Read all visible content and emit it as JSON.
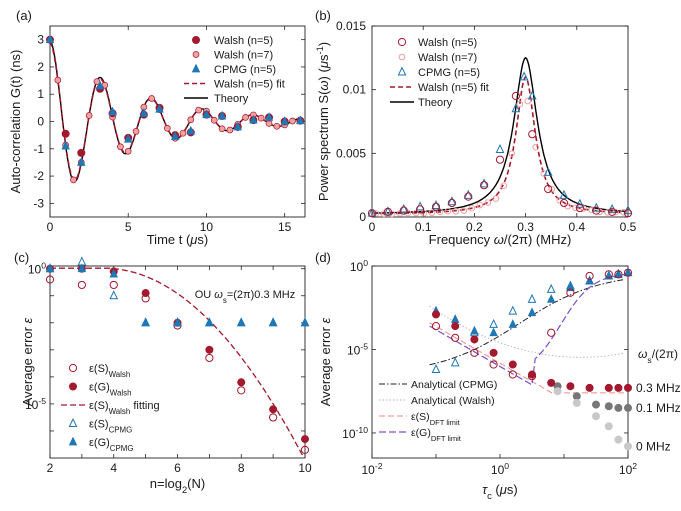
{
  "colors": {
    "walsh": "#a3192e",
    "walsh_light": "#f2a0a0",
    "cpmg": "#1f77b4",
    "theory": "#000000",
    "ac_cpmg": "#222222",
    "ac_walsh": "#bbbbbb",
    "dft_s": "#f28a8a",
    "dft_g": "#7a4fcf",
    "grey_mid": "#777777",
    "grey_light": "#c8c8c8"
  },
  "chart_data": [
    {
      "panel": "(a)",
      "type": "line",
      "xlabel": "Time t (μs)",
      "ylabel": "Auto-correlation G(t) (ns)",
      "xlim": [
        0,
        16.3
      ],
      "ylim": [
        -3.5,
        3.5
      ],
      "xticks": [
        "0",
        "5",
        "10",
        "15"
      ],
      "yticks": [
        "-3",
        "-2",
        "-1",
        "0",
        "1",
        "2",
        "3"
      ],
      "legend": [
        "Walsh (n=5)",
        "Walsh (n=7)",
        "CPMG (n=5)",
        "Walsh (n=5) fit",
        "Theory"
      ],
      "series_walsh5": {
        "x": [
          0,
          1,
          2,
          3.2,
          4,
          5,
          6,
          7,
          8,
          9,
          10,
          11,
          12,
          13,
          14,
          15,
          16
        ],
        "y": [
          3.0,
          -0.45,
          -1.15,
          1.2,
          0.3,
          -0.6,
          0.25,
          0.5,
          -0.5,
          -0.4,
          0.25,
          0.2,
          -0.2,
          0.05,
          0.15,
          0.0,
          0.03
        ]
      },
      "series_cpmg": {
        "x": [
          0,
          1,
          2,
          3.2,
          4,
          5,
          6,
          7,
          8,
          9,
          10,
          11,
          12,
          13,
          14,
          15,
          16
        ],
        "y": [
          3.0,
          -0.9,
          -1.5,
          1.3,
          0.35,
          -0.65,
          0.3,
          0.45,
          -0.55,
          -0.35,
          0.25,
          0.2,
          -0.2,
          0.05,
          0.15,
          0.0,
          0.03
        ]
      }
    },
    {
      "panel": "(b)",
      "type": "line",
      "xlabel": "Frequency ω/(2π) (MHz)",
      "ylabel": "Power spectrum S(ω) (μs⁻¹)",
      "xlim": [
        0,
        0.5
      ],
      "ylim": [
        0,
        0.015
      ],
      "xticks": [
        "0",
        "0.1",
        "0.2",
        "0.3",
        "0.4",
        "0.5"
      ],
      "yticks": [
        "0",
        "0.005",
        "0.01",
        "0.015"
      ],
      "legend": [
        "Walsh (n=5)",
        "Walsh (n=7)",
        "CPMG (n=5)",
        "Walsh (n=5) fit",
        "Theory"
      ],
      "series_walsh5": {
        "x": [
          0.0,
          0.031,
          0.062,
          0.094,
          0.125,
          0.156,
          0.188,
          0.219,
          0.25,
          0.281,
          0.313,
          0.344,
          0.375,
          0.406,
          0.438,
          0.469,
          0.5
        ],
        "y": [
          0.0003,
          0.0004,
          0.0005,
          0.0006,
          0.0008,
          0.0011,
          0.0016,
          0.0025,
          0.0045,
          0.0095,
          0.0065,
          0.0022,
          0.0011,
          0.0007,
          0.0005,
          0.0004,
          0.0003
        ]
      },
      "series_cpmg": {
        "x": [
          0.0,
          0.031,
          0.062,
          0.094,
          0.125,
          0.156,
          0.188,
          0.219,
          0.25,
          0.281,
          0.297,
          0.313,
          0.344,
          0.375,
          0.406,
          0.438,
          0.469,
          0.5
        ],
        "y": [
          0.0003,
          0.0004,
          0.0006,
          0.0008,
          0.0009,
          0.0012,
          0.0017,
          0.0026,
          0.0053,
          0.0085,
          0.011,
          0.0095,
          0.0035,
          0.0017,
          0.001,
          0.0007,
          0.0006,
          0.0005
        ]
      }
    },
    {
      "panel": "(c)",
      "type": "scatter",
      "xlabel": "n=log2(N)",
      "ylabel": "Average error ε",
      "xlim": [
        2,
        10
      ],
      "ylim_log10": [
        -7,
        0.1
      ],
      "xticks": [
        "2",
        "4",
        "6",
        "8",
        "10"
      ],
      "yticks": [
        "10^0",
        "10^-5"
      ],
      "annotation": "OU ωs=(2π)0.3 MHz",
      "legend": [
        "ε(S)Walsh",
        "ε(G)Walsh",
        "ε(S)Walsh fitting",
        "ε(S)CPMG",
        "ε(G)CPMG"
      ],
      "x": [
        2,
        3,
        4,
        5,
        6,
        7,
        8,
        9,
        10
      ],
      "eps_S_walsh_log10": [
        -0.4,
        -0.6,
        -0.6,
        -1.1,
        -2.1,
        -3.3,
        -4.5,
        -5.5,
        -6.7
      ],
      "eps_G_walsh_log10": [
        0,
        0,
        -0.1,
        -0.9,
        -2.0,
        -3.0,
        -4.2,
        -5.2,
        -6.3
      ],
      "eps_S_cpmg_log10": [
        0,
        0.25,
        -1.0,
        -2.0,
        -2.0,
        -2.0,
        -2.0,
        -2.0,
        -2.0
      ],
      "eps_G_cpmg_log10": [
        0,
        0,
        -0.2,
        -2.0,
        -2.0,
        -2.0,
        -2.0,
        -2.0,
        -2.0
      ]
    },
    {
      "panel": "(d)",
      "type": "scatter",
      "xlabel": "τc (μs)",
      "ylabel": "Average error ε",
      "xlim_log10": [
        -2,
        2
      ],
      "ylim_log10": [
        -11.5,
        0
      ],
      "xticks": [
        "10^-2",
        "10^0",
        "10^2"
      ],
      "yticks": [
        "10^0",
        "10^-5",
        "10^-10"
      ],
      "legend_title": "ωs/(2π)",
      "legend": [
        "Analytical (CPMG)",
        "Analytical (Walsh)",
        "ε(S)DFT limit",
        "ε(G)DFT limit"
      ],
      "series_labels": [
        "0.3 MHz",
        "0.1 MHz",
        "0 MHz"
      ],
      "log10_tau": [
        -1.0,
        -0.7,
        -0.4,
        -0.1,
        0.2,
        0.5,
        0.8,
        1.1,
        1.4,
        1.7,
        1.85,
        2.0
      ],
      "eps_G_walsh_log10": [
        -2.9,
        -3.6,
        -4.4,
        -5.2,
        -5.9,
        -6.5,
        -7.0,
        -7.2,
        -7.3,
        -7.3,
        -7.3,
        -7.3
      ],
      "eps_S_walsh_log10": [
        -3.6,
        -4.3,
        -5.2,
        -5.9,
        -6.5,
        -6.6,
        -4.0,
        -1.6,
        -0.6,
        -0.5,
        -0.5,
        -0.4
      ],
      "eps_S_cpmg_log10": [
        -6.2,
        -5.8,
        -4.0,
        -3.5,
        -2.7,
        -2.0,
        -1.4,
        -1.2,
        -0.9,
        -0.6,
        -0.5,
        -0.4
      ],
      "eps_G_cpmg_log10": [
        -2.7,
        -3.2,
        -3.9,
        -4.0,
        -3.5,
        -2.8,
        -2.0,
        -1.3,
        -0.9,
        -0.6,
        -0.5,
        -0.4
      ],
      "grey_mid_log10": [
        -7.2,
        -7.8,
        -8.3,
        -8.4,
        -8.5,
        -8.5
      ],
      "grey_light_log10": [
        -7.5,
        -8.2,
        -9.0,
        -9.6,
        -10.4,
        -10.8
      ]
    }
  ]
}
